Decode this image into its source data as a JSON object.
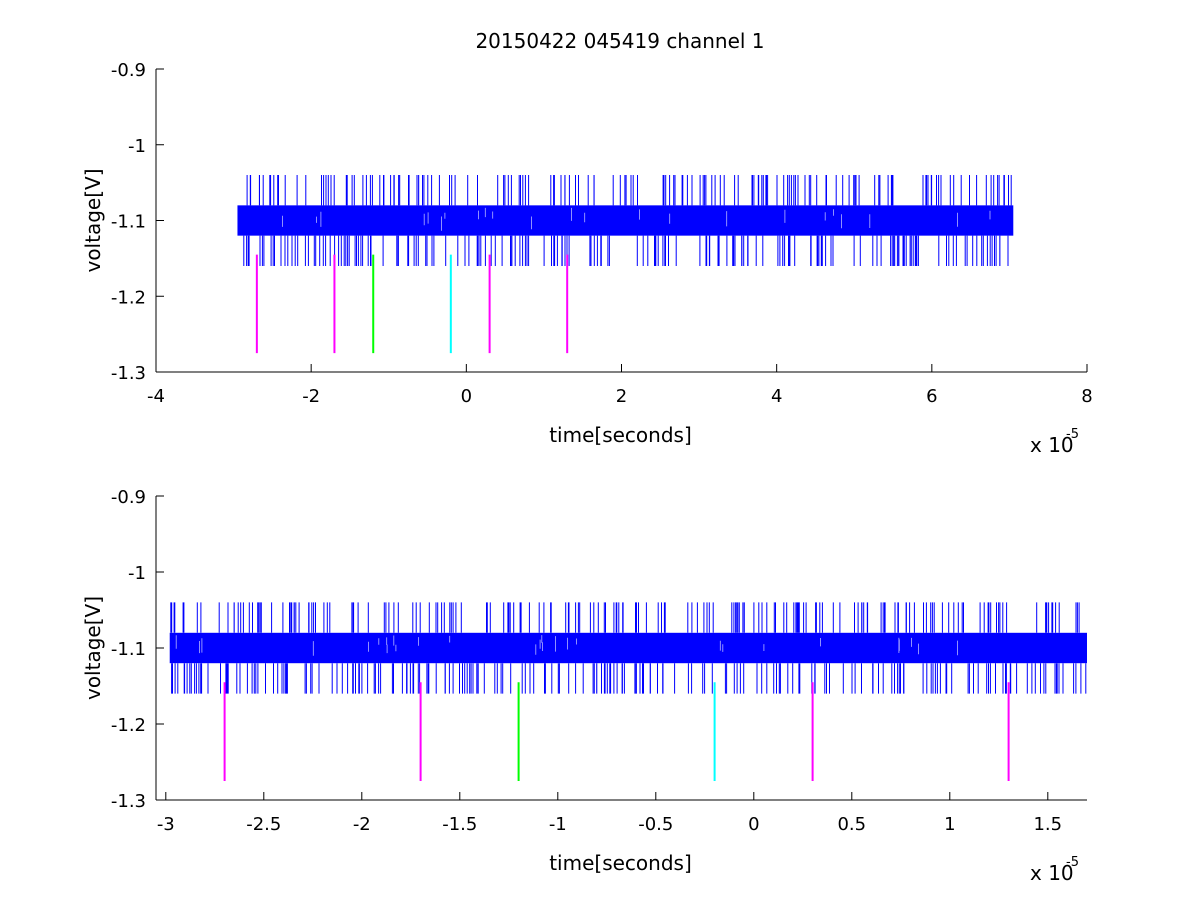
{
  "figure_title": "20150422 045419 channel 1",
  "chart_data": [
    {
      "type": "line",
      "title": "20150422 045419 channel 1",
      "xlabel": "time[seconds]",
      "ylabel": "voltage[V]",
      "x_exponent_label": "x 10",
      "x_exponent": "-5",
      "xlim": [
        -4e-05,
        8e-05
      ],
      "ylim": [
        -1.3,
        -0.9
      ],
      "x_ticks": [
        -4e-05,
        -2e-05,
        0,
        2e-05,
        4e-05,
        6e-05,
        8e-05
      ],
      "x_tick_labels": [
        "-4",
        "-2",
        "0",
        "2",
        "4",
        "6",
        "8"
      ],
      "y_ticks": [
        -1.3,
        -1.2,
        -1.1,
        -1.0,
        -0.9
      ],
      "y_tick_labels": [
        "-1.3",
        "-1.2",
        "-1.1",
        "-1",
        "-0.9"
      ],
      "grid": false,
      "series": [
        {
          "color": "#0000ff",
          "x_range": [
            -2.95e-05,
            7.05e-05
          ],
          "band": [
            -1.12,
            -1.08
          ],
          "spike_levels": [
            -1.16,
            -1.04
          ],
          "spike_density_note": "noise"
        }
      ],
      "markers": [
        {
          "x": -2.7e-05,
          "color": "#ff00ff",
          "y_range": [
            -1.275,
            -1.145
          ]
        },
        {
          "x": -1.7e-05,
          "color": "#ff00ff",
          "y_range": [
            -1.275,
            -1.145
          ]
        },
        {
          "x": -1.2e-05,
          "color": "#00ff00",
          "y_range": [
            -1.275,
            -1.145
          ]
        },
        {
          "x": -2e-06,
          "color": "#00ffff",
          "y_range": [
            -1.275,
            -1.145
          ]
        },
        {
          "x": 3e-06,
          "color": "#ff00ff",
          "y_range": [
            -1.275,
            -1.145
          ]
        },
        {
          "x": 1.3e-05,
          "color": "#ff00ff",
          "y_range": [
            -1.275,
            -1.145
          ]
        }
      ]
    },
    {
      "type": "line",
      "title": "",
      "xlabel": "time[seconds]",
      "ylabel": "voltage[V]",
      "x_exponent_label": "x 10",
      "x_exponent": "-5",
      "xlim": [
        -3.05e-05,
        1.7e-05
      ],
      "ylim": [
        -1.3,
        -0.9
      ],
      "x_ticks": [
        -3e-05,
        -2.5e-05,
        -2e-05,
        -1.5e-05,
        -1e-05,
        -5e-06,
        0,
        5e-06,
        1e-05,
        1.5e-05
      ],
      "x_tick_labels": [
        "-3",
        "-2.5",
        "-2",
        "-1.5",
        "-1",
        "-0.5",
        "0",
        "0.5",
        "1",
        "1.5"
      ],
      "y_ticks": [
        -1.3,
        -1.2,
        -1.1,
        -1.0,
        -0.9
      ],
      "y_tick_labels": [
        "-1.3",
        "-1.2",
        "-1.1",
        "-1",
        "-0.9"
      ],
      "grid": false,
      "series": [
        {
          "color": "#0000ff",
          "x_range": [
            -2.98e-05,
            1.7e-05
          ],
          "band": [
            -1.12,
            -1.08
          ],
          "spike_levels": [
            -1.16,
            -1.04
          ],
          "spike_density_note": "noise"
        }
      ],
      "markers": [
        {
          "x": -2.7e-05,
          "color": "#ff00ff",
          "y_range": [
            -1.275,
            -1.145
          ]
        },
        {
          "x": -1.7e-05,
          "color": "#ff00ff",
          "y_range": [
            -1.275,
            -1.145
          ]
        },
        {
          "x": -1.2e-05,
          "color": "#00ff00",
          "y_range": [
            -1.275,
            -1.145
          ]
        },
        {
          "x": -2e-06,
          "color": "#00ffff",
          "y_range": [
            -1.275,
            -1.145
          ]
        },
        {
          "x": 3e-06,
          "color": "#ff00ff",
          "y_range": [
            -1.275,
            -1.145
          ]
        },
        {
          "x": 1.3e-05,
          "color": "#ff00ff",
          "y_range": [
            -1.275,
            -1.145
          ]
        }
      ]
    }
  ]
}
